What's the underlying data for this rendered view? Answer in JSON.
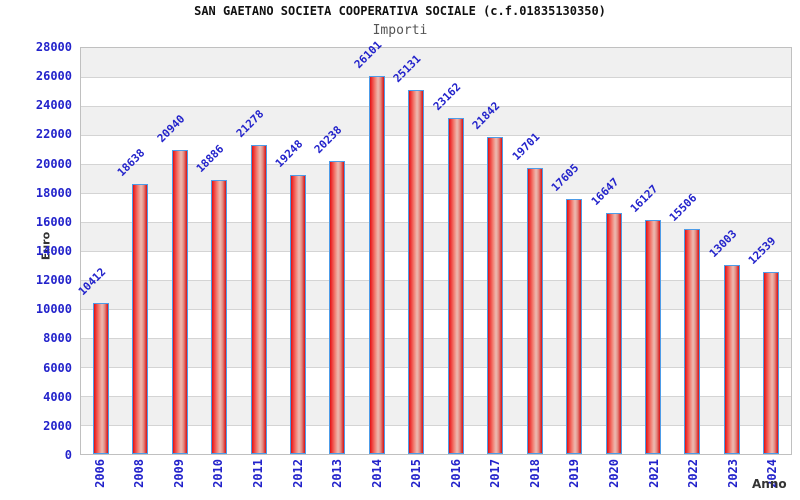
{
  "chart_data": {
    "type": "bar",
    "title": "SAN GAETANO SOCIETA COOPERATIVA SOCIALE (c.f.01835130350)",
    "subtitle": "Importi",
    "xlabel": "Anno",
    "ylabel": "Euro",
    "categories": [
      "2006",
      "2008",
      "2009",
      "2010",
      "2011",
      "2012",
      "2013",
      "2014",
      "2015",
      "2016",
      "2017",
      "2018",
      "2019",
      "2020",
      "2021",
      "2022",
      "2023",
      "2024"
    ],
    "values": [
      10412,
      18638,
      20940,
      18886,
      21278,
      19248,
      20238,
      26101,
      25131,
      23162,
      21842,
      19701,
      17605,
      16647,
      16127,
      15506,
      13003,
      12539
    ],
    "ylim": [
      0,
      28000
    ],
    "ytick_step": 2000,
    "grid": true,
    "legend": "none",
    "band_fill": "#f0f0f0",
    "colors": {
      "bar_fill": "#e02020",
      "bar_border": "#4d9ce8",
      "label_blue": "#2323cb",
      "grid_color": "#d4d4d4",
      "title_color": "#111111",
      "subtitle_color": "#555555",
      "axis_title_color": "#333333"
    }
  }
}
